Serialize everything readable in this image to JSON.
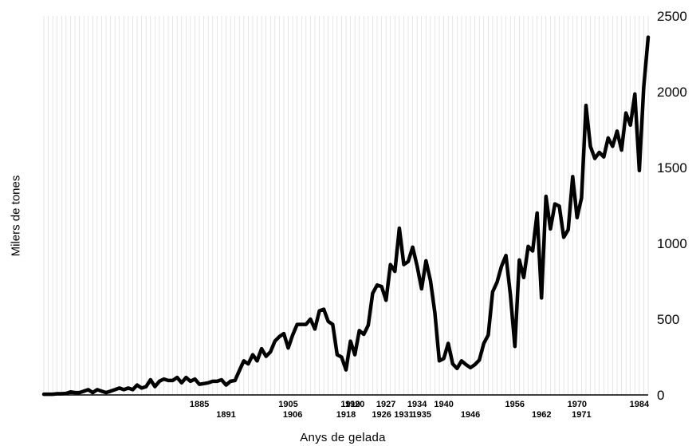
{
  "chart_data": {
    "type": "line",
    "title": "",
    "xlabel": "Anys de gelada",
    "ylabel": "Milers de tones",
    "xlim": [
      1850,
      1986
    ],
    "ylim": [
      0,
      2500
    ],
    "yticks": [
      0,
      500,
      1000,
      1500,
      2000,
      2500
    ],
    "grid": "vertical lines every year",
    "color": "#000000",
    "highlighted_years_row1": [
      1885,
      1905,
      1919,
      1920,
      1927,
      1934,
      1940,
      1956,
      1970,
      1984
    ],
    "highlighted_years_row2": [
      1891,
      1906,
      1918,
      1926,
      1931,
      1935,
      1946,
      1962,
      1971
    ],
    "x": [
      1850,
      1851,
      1852,
      1853,
      1854,
      1855,
      1856,
      1857,
      1858,
      1859,
      1860,
      1861,
      1862,
      1863,
      1864,
      1865,
      1866,
      1867,
      1868,
      1869,
      1870,
      1871,
      1872,
      1873,
      1874,
      1875,
      1876,
      1877,
      1878,
      1879,
      1880,
      1881,
      1882,
      1883,
      1884,
      1885,
      1886,
      1887,
      1888,
      1889,
      1890,
      1891,
      1892,
      1893,
      1894,
      1895,
      1896,
      1897,
      1898,
      1899,
      1900,
      1901,
      1902,
      1903,
      1904,
      1905,
      1906,
      1907,
      1908,
      1909,
      1910,
      1911,
      1912,
      1913,
      1914,
      1915,
      1916,
      1917,
      1918,
      1919,
      1920,
      1921,
      1922,
      1923,
      1924,
      1925,
      1926,
      1927,
      1928,
      1929,
      1930,
      1931,
      1932,
      1933,
      1934,
      1935,
      1936,
      1937,
      1938,
      1939,
      1940,
      1941,
      1942,
      1943,
      1944,
      1945,
      1946,
      1947,
      1948,
      1949,
      1950,
      1951,
      1952,
      1953,
      1954,
      1955,
      1956,
      1957,
      1958,
      1959,
      1960,
      1961,
      1962,
      1963,
      1964,
      1965,
      1966,
      1967,
      1968,
      1969,
      1970,
      1971,
      1972,
      1973,
      1974,
      1975,
      1976,
      1977,
      1978,
      1979,
      1980,
      1981,
      1982,
      1983,
      1984,
      1985,
      1986
    ],
    "values": [
      5,
      5,
      5,
      8,
      8,
      10,
      20,
      15,
      15,
      25,
      35,
      15,
      35,
      25,
      15,
      25,
      35,
      45,
      35,
      45,
      35,
      65,
      45,
      55,
      100,
      55,
      90,
      105,
      95,
      95,
      115,
      80,
      115,
      90,
      105,
      70,
      75,
      80,
      90,
      90,
      100,
      65,
      90,
      95,
      160,
      225,
      205,
      265,
      225,
      305,
      255,
      285,
      355,
      385,
      405,
      310,
      395,
      465,
      465,
      465,
      500,
      435,
      555,
      565,
      485,
      465,
      265,
      250,
      165,
      355,
      265,
      425,
      400,
      460,
      670,
      725,
      715,
      625,
      860,
      815,
      1100,
      860,
      880,
      975,
      850,
      700,
      885,
      755,
      540,
      225,
      240,
      340,
      205,
      175,
      225,
      200,
      180,
      200,
      230,
      340,
      395,
      680,
      745,
      850,
      920,
      660,
      320,
      890,
      775,
      980,
      950,
      1200,
      640,
      1310,
      1095,
      1260,
      1245,
      1040,
      1090,
      1440,
      1170,
      1300,
      1910,
      1640,
      1560,
      1600,
      1570,
      1695,
      1640,
      1740,
      1615,
      1860,
      1780,
      1985,
      1480,
      2030,
      2360
    ]
  }
}
